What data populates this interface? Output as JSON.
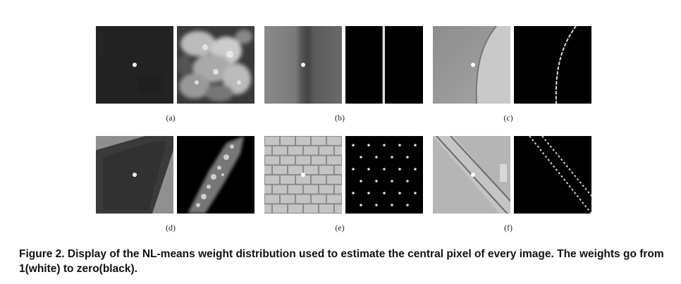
{
  "figure": {
    "subfigure_labels": [
      "(a)",
      "(b)",
      "(c)",
      "(d)",
      "(e)",
      "(f)"
    ],
    "caption": "Figure 2. Display of the NL-means weight distribution used to estimate the central pixel of every image.  The weights go from 1(white) to zero(black)."
  }
}
